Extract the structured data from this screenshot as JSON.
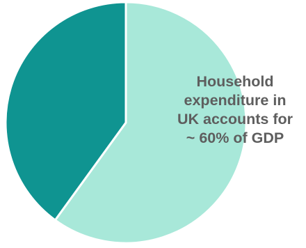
{
  "chart_data": {
    "type": "pie",
    "slices": [
      {
        "value": 60,
        "color": "#a8e8d9"
      },
      {
        "value": 40,
        "color": "#0f9491"
      }
    ],
    "start_angle_deg": 0,
    "direction": "clockwise",
    "separator_color": "#ffffff",
    "legend": "none",
    "annotation": {
      "lines": [
        "Household",
        "expenditure in",
        "UK accounts for",
        "~ 60% of GDP"
      ]
    }
  }
}
